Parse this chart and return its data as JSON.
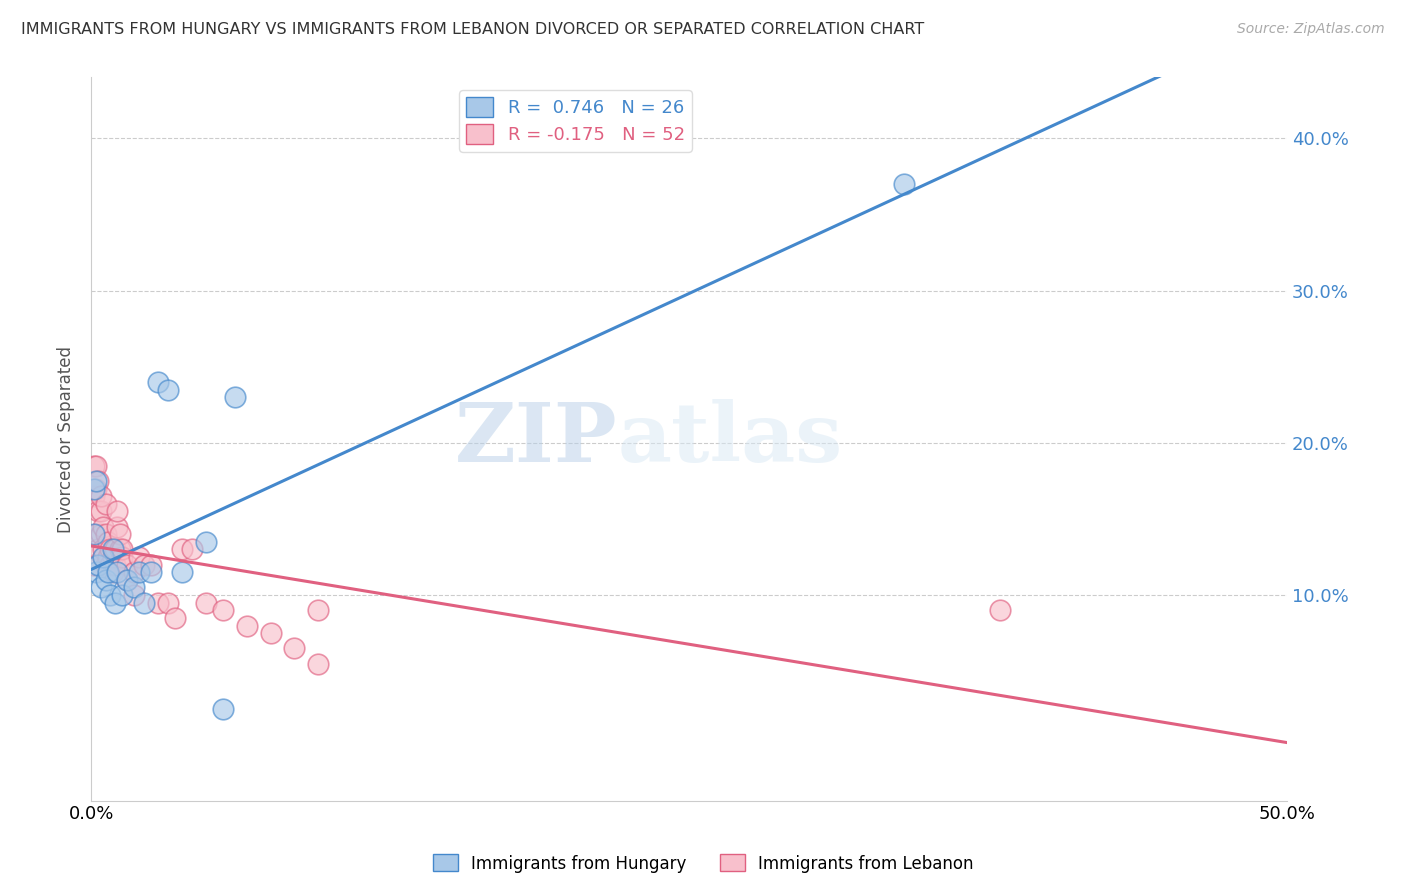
{
  "title": "IMMIGRANTS FROM HUNGARY VS IMMIGRANTS FROM LEBANON DIVORCED OR SEPARATED CORRELATION CHART",
  "source": "Source: ZipAtlas.com",
  "ylabel": "Divorced or Separated",
  "legend_hungary": "Immigrants from Hungary",
  "legend_lebanon": "Immigrants from Lebanon",
  "r_hungary": 0.746,
  "n_hungary": 26,
  "r_lebanon": -0.175,
  "n_lebanon": 52,
  "xlim": [
    0.0,
    0.5
  ],
  "ylim": [
    -0.035,
    0.44
  ],
  "yticks": [
    0.1,
    0.2,
    0.3,
    0.4
  ],
  "ytick_labels": [
    "10.0%",
    "20.0%",
    "30.0%",
    "40.0%"
  ],
  "xticks": [
    0.0,
    0.1,
    0.2,
    0.3,
    0.4,
    0.5
  ],
  "xtick_labels": [
    "0.0%",
    "",
    "",
    "",
    "",
    "50.0%"
  ],
  "color_hungary": "#a8c8e8",
  "color_lebanon": "#f8c0cc",
  "line_color_hungary": "#4488cc",
  "line_color_lebanon": "#e06080",
  "watermark_zip": "ZIP",
  "watermark_atlas": "atlas",
  "hungary_x": [
    0.001,
    0.001,
    0.002,
    0.002,
    0.003,
    0.004,
    0.005,
    0.006,
    0.007,
    0.008,
    0.009,
    0.01,
    0.011,
    0.013,
    0.015,
    0.018,
    0.02,
    0.022,
    0.025,
    0.028,
    0.032,
    0.038,
    0.048,
    0.055,
    0.34,
    0.06
  ],
  "hungary_y": [
    0.14,
    0.17,
    0.115,
    0.175,
    0.12,
    0.105,
    0.125,
    0.11,
    0.115,
    0.1,
    0.13,
    0.095,
    0.115,
    0.1,
    0.11,
    0.105,
    0.115,
    0.095,
    0.115,
    0.24,
    0.235,
    0.115,
    0.135,
    0.025,
    0.37,
    0.23
  ],
  "lebanon_x": [
    0.001,
    0.001,
    0.001,
    0.002,
    0.002,
    0.002,
    0.003,
    0.003,
    0.003,
    0.004,
    0.004,
    0.004,
    0.005,
    0.005,
    0.005,
    0.006,
    0.006,
    0.006,
    0.007,
    0.007,
    0.008,
    0.008,
    0.009,
    0.009,
    0.01,
    0.01,
    0.011,
    0.011,
    0.012,
    0.012,
    0.013,
    0.013,
    0.015,
    0.015,
    0.018,
    0.018,
    0.02,
    0.022,
    0.025,
    0.028,
    0.032,
    0.035,
    0.038,
    0.042,
    0.048,
    0.055,
    0.065,
    0.075,
    0.085,
    0.095,
    0.38,
    0.095
  ],
  "lebanon_y": [
    0.12,
    0.165,
    0.185,
    0.14,
    0.17,
    0.185,
    0.13,
    0.155,
    0.175,
    0.14,
    0.155,
    0.165,
    0.125,
    0.13,
    0.145,
    0.12,
    0.14,
    0.16,
    0.125,
    0.135,
    0.12,
    0.13,
    0.115,
    0.125,
    0.12,
    0.13,
    0.145,
    0.155,
    0.13,
    0.14,
    0.125,
    0.13,
    0.12,
    0.11,
    0.115,
    0.1,
    0.125,
    0.12,
    0.12,
    0.095,
    0.095,
    0.085,
    0.13,
    0.13,
    0.095,
    0.09,
    0.08,
    0.075,
    0.065,
    0.055,
    0.09,
    0.09
  ]
}
